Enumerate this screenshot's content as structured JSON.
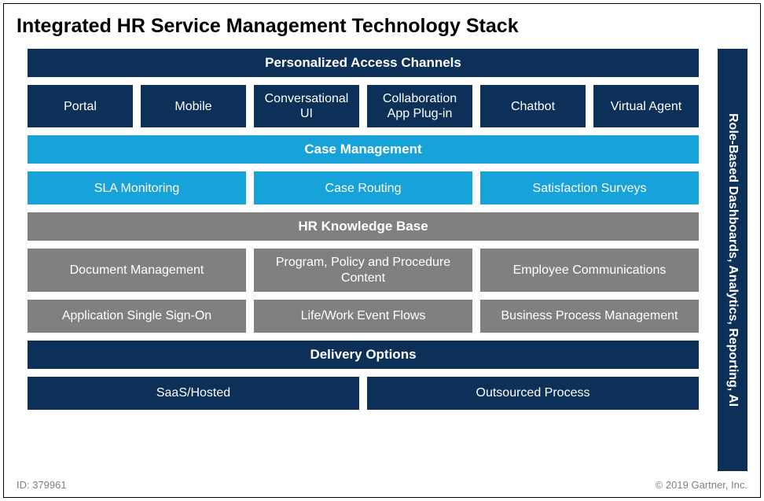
{
  "title": "Integrated HR Service Management Technology Stack",
  "colors": {
    "navy": "#0d3058",
    "navy_cell": "#0d3058",
    "cyan": "#18a2da",
    "gray": "#808080",
    "white": "#ffffff"
  },
  "sections": {
    "access": {
      "header": "Personalized Access Channels",
      "items": [
        "Portal",
        "Mobile",
        "Conversational UI",
        "Collaboration App Plug-in",
        "Chatbot",
        "Virtual Agent"
      ]
    },
    "case": {
      "header": "Case Management",
      "items": [
        "SLA Monitoring",
        "Case Routing",
        "Satisfaction Surveys"
      ]
    },
    "kb": {
      "header": "HR Knowledge Base",
      "row1": [
        "Document Management",
        "Program, Policy and Procedure Content",
        "Employee Communications"
      ],
      "row2": [
        "Application Single Sign-On",
        "Life/Work Event Flows",
        "Business Process Management"
      ]
    },
    "delivery": {
      "header": "Delivery Options",
      "items": [
        "SaaS/Hosted",
        "Outsourced Process"
      ]
    }
  },
  "sidebar": "Role-Based Dashboards, Analytics, Reporting, AI",
  "footer": {
    "id_label": "ID: 379961",
    "copyright": "© 2019 Gartner, Inc."
  }
}
